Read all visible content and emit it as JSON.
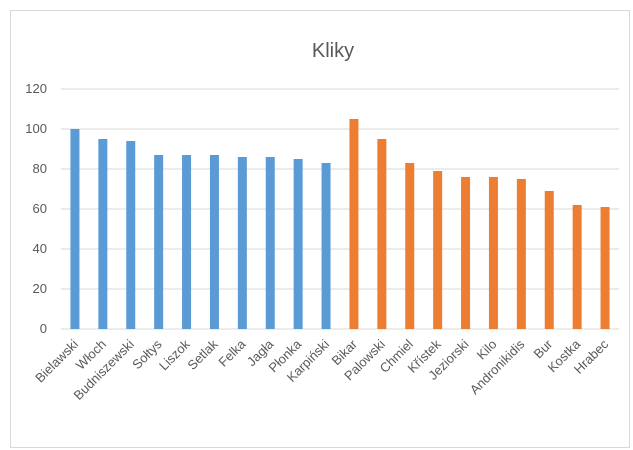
{
  "chart_data": {
    "type": "bar",
    "title": "Kliky",
    "xlabel": "",
    "ylabel": "",
    "ylim": [
      0,
      120
    ],
    "yticks": [
      0,
      20,
      40,
      60,
      80,
      100,
      120
    ],
    "grid": true,
    "legend": "none",
    "categories": [
      "Bielawski",
      "Włoch",
      "Budniszewski",
      "Sołtys",
      "Liszok",
      "Setlak",
      "Felka",
      "Jagła",
      "Płonka",
      "Karpiński",
      "Bikar",
      "Palowski",
      "Chmiel",
      "Křístek",
      "Jeziorski",
      "Kilo",
      "Andronikidis",
      "Bur",
      "Kostka",
      "Hrabec"
    ],
    "values": [
      100,
      95,
      94,
      87,
      87,
      87,
      86,
      86,
      85,
      83,
      105,
      95,
      83,
      79,
      76,
      76,
      75,
      69,
      62,
      61
    ],
    "colors": {
      "first_group": "#5b9bd5",
      "second_group": "#ed7d31",
      "gridline": "#d9d9d9",
      "text": "#595959"
    },
    "first_group_count": 10
  }
}
